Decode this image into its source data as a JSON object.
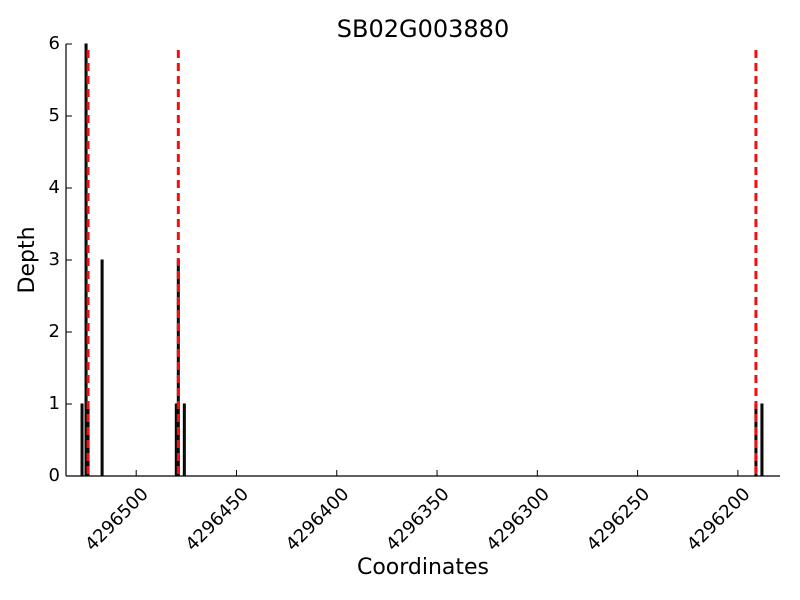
{
  "chart_data": {
    "type": "bar",
    "title": "SB02G003880",
    "x_label": "Coordinates",
    "y_label": "Depth",
    "x": [
      4296527,
      4296525,
      4296524,
      4296517,
      4296480,
      4296479,
      4296476,
      4296191,
      4296188
    ],
    "values": [
      1,
      6,
      1,
      3,
      1,
      3,
      1,
      1,
      1
    ],
    "color": "#111111",
    "xlim": [
      4296535,
      4296179
    ],
    "ylim": [
      0,
      6
    ],
    "xticks": [
      4296500,
      4296450,
      4296400,
      4296350,
      4296300,
      4296250,
      4296200
    ],
    "yticks": [
      0,
      1,
      2,
      3,
      4,
      5,
      6
    ],
    "vlines": [
      4296524,
      4296479,
      4296191
    ],
    "vline_color": "#ee1111"
  }
}
